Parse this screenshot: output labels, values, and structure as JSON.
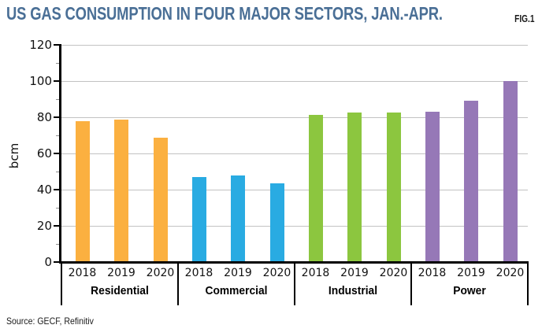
{
  "header": {
    "title": "US GAS CONSUMPTION IN FOUR MAJOR SECTORS, JAN.-APR.",
    "title_color": "#4A6F96",
    "fig_label": "FIG.1"
  },
  "footer": {
    "source": "Source: GECF, Refinitiv"
  },
  "chart_data": {
    "type": "bar",
    "title": "US GAS CONSUMPTION IN FOUR MAJOR SECTORS, JAN.-APR.",
    "xlabel": "",
    "ylabel": "bcm",
    "ylim": [
      0,
      120
    ],
    "yticks": [
      0,
      20,
      40,
      60,
      80,
      100,
      120
    ],
    "minor_tick_step": 10,
    "grid": true,
    "grid_color": "#C2C2C2",
    "axis_color": "#000000",
    "years": [
      "2018",
      "2019",
      "2020"
    ],
    "categories": [
      "Residential",
      "Commercial",
      "Industrial",
      "Power"
    ],
    "series": [
      {
        "name": "Residential",
        "color": "#FBB040",
        "values": [
          78,
          78.5,
          68.5
        ]
      },
      {
        "name": "Commercial",
        "color": "#29ABE2",
        "values": [
          47,
          48,
          43.5
        ]
      },
      {
        "name": "Industrial",
        "color": "#8CC63F",
        "values": [
          81.5,
          82.5,
          82.5
        ]
      },
      {
        "name": "Power",
        "color": "#9678B7",
        "values": [
          83,
          89,
          100
        ]
      }
    ]
  }
}
